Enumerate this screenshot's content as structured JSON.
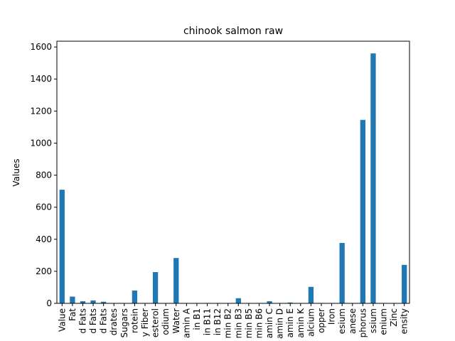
{
  "chart_data": {
    "type": "bar",
    "title": "chinook salmon raw",
    "y_label": "Values",
    "categories": [
      "Value",
      "Fat",
      "d Fats",
      "d Fats",
      "d Fats",
      "drates",
      "Sugars",
      "rotein",
      "y Fiber",
      "esterol",
      "odium",
      "Water",
      "amin A",
      "in B1",
      "in B11",
      "in B12",
      "min B2",
      "min B3",
      "min B5",
      "min B6",
      "amin C",
      "amin D",
      "amin E",
      "amin K",
      "alcium",
      "opper",
      "Iron",
      "esium",
      "anese",
      "phorus",
      "ssium",
      "enium",
      "Zinc",
      "ensity"
    ],
    "values": [
      709,
      42,
      13,
      18,
      10,
      0,
      0,
      80,
      0,
      195,
      0,
      283,
      0,
      0,
      0,
      0,
      0,
      32,
      0,
      0,
      13,
      0,
      5,
      0,
      103,
      0,
      0,
      377,
      0,
      1145,
      1560,
      0,
      0,
      240
    ],
    "color": "#1f77b4",
    "ylim": [
      0,
      1636
    ],
    "yticks": [
      0,
      200,
      400,
      600,
      800,
      1000,
      1200,
      1400,
      1600
    ],
    "grid": false
  }
}
